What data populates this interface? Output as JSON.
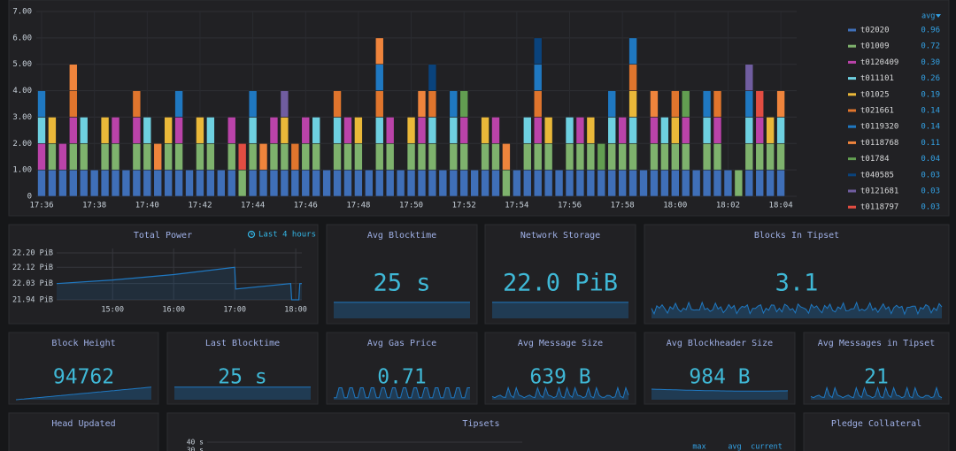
{
  "chart_data": [
    {
      "type": "stacked-bar",
      "categories": [
        "17:36",
        null,
        null,
        null,
        null,
        "17:38",
        null,
        null,
        null,
        null,
        "17:40",
        null,
        null,
        null,
        null,
        "17:42",
        null,
        null,
        null,
        null,
        "17:44",
        null,
        null,
        null,
        null,
        "17:46",
        null,
        null,
        null,
        null,
        "17:48",
        null,
        null,
        null,
        null,
        "17:50",
        null,
        null,
        null,
        null,
        "17:52",
        null,
        null,
        null,
        null,
        "17:54",
        null,
        null,
        null,
        null,
        "17:56",
        null,
        null,
        null,
        null,
        "17:58",
        null,
        null,
        null,
        null,
        "18:00",
        null,
        null,
        null,
        null,
        "18:02",
        null,
        null,
        null,
        null,
        "18:04"
      ],
      "ylim": [
        0,
        7
      ],
      "yticks": [
        0,
        {
          "value": 1,
          "label": "1.00"
        },
        {
          "value": 2,
          "label": "2.00"
        },
        {
          "value": 3,
          "label": "3.00"
        },
        {
          "value": 4,
          "label": "4.00"
        },
        {
          "value": 5,
          "label": "5.00"
        },
        {
          "value": 6,
          "label": "6.00"
        },
        {
          "value": 7,
          "label": "7.00"
        }
      ],
      "grid": true,
      "legend_header": "avg",
      "series": [
        {
          "name": "t02020",
          "color": "#3f6fb8",
          "avg": "0.96",
          "values": [
            1,
            1,
            1,
            1,
            1,
            1,
            1,
            1,
            1,
            1,
            1,
            1,
            1,
            1,
            1,
            1,
            1,
            1,
            1,
            0,
            1,
            1,
            1,
            1,
            1,
            1,
            1,
            1,
            1,
            1,
            1,
            1,
            1,
            1,
            1,
            1,
            1,
            1,
            1,
            1,
            1,
            1,
            1,
            1,
            0,
            1,
            1,
            1,
            1,
            1,
            1,
            1,
            1,
            1,
            1,
            1,
            1,
            1,
            1,
            1,
            1,
            1,
            1,
            1,
            1,
            1,
            0,
            1,
            1,
            1,
            1
          ]
        },
        {
          "name": "t01009",
          "color": "#7eb26d",
          "avg": "0.72",
          "values": [
            0,
            1,
            0,
            1,
            1,
            0,
            1,
            1,
            0,
            1,
            1,
            0,
            1,
            1,
            0,
            1,
            1,
            0,
            1,
            1,
            1,
            0,
            1,
            1,
            0,
            1,
            1,
            0,
            1,
            1,
            1,
            0,
            1,
            1,
            0,
            1,
            1,
            1,
            0,
            1,
            1,
            0,
            1,
            1,
            1,
            0,
            1,
            1,
            1,
            0,
            1,
            1,
            1,
            0,
            1,
            1,
            1,
            0,
            1,
            1,
            1,
            1,
            0,
            1,
            1,
            0,
            1,
            1,
            1,
            1,
            1
          ]
        },
        {
          "name": "t0120409",
          "color": "#ba43a9",
          "avg": "0.30",
          "values": [
            1,
            0,
            1,
            1,
            0,
            0,
            0,
            1,
            0,
            1,
            0,
            0,
            0,
            1,
            0,
            0,
            0,
            0,
            1,
            0,
            0,
            0,
            1,
            0,
            0,
            1,
            0,
            0,
            0,
            1,
            0,
            0,
            0,
            1,
            0,
            0,
            1,
            0,
            0,
            0,
            1,
            0,
            0,
            1,
            0,
            0,
            0,
            1,
            0,
            0,
            0,
            1,
            0,
            0,
            0,
            1,
            0,
            0,
            1,
            0,
            0,
            1,
            0,
            0,
            1,
            0,
            0,
            0,
            1,
            0,
            0
          ]
        },
        {
          "name": "t011101",
          "color": "#6ed0e0",
          "avg": "0.26",
          "values": [
            1,
            0,
            0,
            0,
            1,
            0,
            0,
            0,
            0,
            0,
            1,
            0,
            0,
            0,
            0,
            0,
            1,
            0,
            0,
            0,
            1,
            0,
            0,
            0,
            0,
            0,
            1,
            0,
            1,
            0,
            0,
            0,
            1,
            0,
            0,
            0,
            0,
            1,
            0,
            1,
            0,
            0,
            0,
            0,
            0,
            0,
            1,
            0,
            0,
            0,
            1,
            0,
            0,
            0,
            1,
            0,
            1,
            0,
            0,
            1,
            0,
            0,
            0,
            1,
            0,
            0,
            0,
            1,
            0,
            0,
            1
          ]
        },
        {
          "name": "t01025",
          "color": "#eab839",
          "avg": "0.19",
          "values": [
            0,
            1,
            0,
            0,
            0,
            0,
            1,
            0,
            0,
            0,
            0,
            0,
            1,
            0,
            0,
            1,
            0,
            0,
            0,
            0,
            0,
            0,
            0,
            1,
            0,
            0,
            0,
            0,
            0,
            0,
            1,
            0,
            0,
            0,
            0,
            1,
            0,
            0,
            0,
            0,
            0,
            0,
            1,
            0,
            0,
            0,
            0,
            0,
            1,
            0,
            0,
            0,
            1,
            0,
            0,
            0,
            1,
            0,
            0,
            0,
            1,
            0,
            0,
            0,
            0,
            0,
            0,
            0,
            0,
            1,
            0
          ]
        },
        {
          "name": "t021661",
          "color": "#e0752d",
          "avg": "0.14",
          "values": [
            0,
            0,
            0,
            1,
            0,
            0,
            0,
            0,
            0,
            1,
            0,
            0,
            0,
            0,
            0,
            0,
            0,
            0,
            0,
            0,
            0,
            0,
            0,
            0,
            1,
            0,
            0,
            0,
            1,
            0,
            0,
            0,
            1,
            0,
            0,
            0,
            0,
            1,
            0,
            0,
            0,
            0,
            0,
            0,
            0,
            0,
            0,
            1,
            0,
            0,
            0,
            0,
            0,
            0,
            0,
            0,
            1,
            0,
            0,
            0,
            1,
            0,
            0,
            0,
            1,
            0,
            0,
            0,
            0,
            0,
            0
          ]
        },
        {
          "name": "t0119320",
          "color": "#1f78c1",
          "avg": "0.14",
          "values": [
            1,
            0,
            0,
            0,
            0,
            0,
            0,
            0,
            0,
            0,
            0,
            0,
            0,
            1,
            0,
            0,
            0,
            0,
            0,
            0,
            1,
            0,
            0,
            0,
            0,
            0,
            0,
            0,
            0,
            0,
            0,
            0,
            1,
            0,
            0,
            0,
            0,
            0,
            0,
            1,
            0,
            0,
            0,
            0,
            0,
            0,
            0,
            1,
            0,
            0,
            0,
            0,
            0,
            0,
            1,
            0,
            1,
            0,
            0,
            0,
            0,
            0,
            0,
            1,
            0,
            0,
            0,
            1,
            0,
            0,
            0
          ]
        },
        {
          "name": "t0118768",
          "color": "#ef843c",
          "avg": "0.11",
          "values": [
            0,
            0,
            0,
            1,
            0,
            0,
            0,
            0,
            0,
            0,
            0,
            1,
            0,
            0,
            0,
            0,
            0,
            0,
            0,
            0,
            0,
            1,
            0,
            0,
            0,
            0,
            0,
            0,
            0,
            0,
            0,
            0,
            1,
            0,
            0,
            0,
            1,
            0,
            0,
            0,
            0,
            0,
            0,
            0,
            1,
            0,
            0,
            0,
            0,
            0,
            0,
            0,
            0,
            0,
            0,
            0,
            0,
            0,
            1,
            0,
            0,
            0,
            0,
            0,
            0,
            0,
            0,
            0,
            0,
            0,
            1
          ]
        },
        {
          "name": "t01784",
          "color": "#629e51",
          "avg": "0.04",
          "values": [
            0,
            0,
            0,
            0,
            0,
            0,
            0,
            0,
            0,
            0,
            0,
            0,
            0,
            0,
            0,
            0,
            0,
            0,
            0,
            0,
            0,
            0,
            0,
            0,
            0,
            0,
            0,
            0,
            0,
            0,
            0,
            0,
            0,
            0,
            0,
            0,
            0,
            0,
            0,
            0,
            1,
            0,
            0,
            0,
            0,
            0,
            0,
            0,
            0,
            0,
            0,
            0,
            0,
            1,
            0,
            0,
            0,
            0,
            0,
            0,
            0,
            1,
            0,
            0,
            0,
            0,
            0,
            0,
            0,
            0,
            0
          ]
        },
        {
          "name": "t040585",
          "color": "#0a437c",
          "avg": "0.03",
          "values": [
            0,
            0,
            0,
            0,
            0,
            0,
            0,
            0,
            0,
            0,
            0,
            0,
            0,
            0,
            0,
            0,
            0,
            0,
            0,
            0,
            0,
            0,
            0,
            0,
            0,
            0,
            0,
            0,
            0,
            0,
            0,
            0,
            0,
            0,
            0,
            0,
            0,
            1,
            0,
            0,
            0,
            0,
            0,
            0,
            0,
            0,
            0,
            1,
            0,
            0,
            0,
            0,
            0,
            0,
            0,
            0,
            0,
            0,
            0,
            0,
            0,
            0,
            0,
            0,
            0,
            0,
            0,
            0,
            0,
            0,
            0
          ]
        },
        {
          "name": "t0121681",
          "color": "#705da0",
          "avg": "0.03",
          "values": [
            0,
            0,
            0,
            0,
            0,
            0,
            0,
            0,
            0,
            0,
            0,
            0,
            0,
            0,
            0,
            0,
            0,
            0,
            0,
            0,
            0,
            0,
            0,
            1,
            0,
            0,
            0,
            0,
            0,
            0,
            0,
            0,
            0,
            0,
            0,
            0,
            0,
            0,
            0,
            0,
            0,
            0,
            0,
            0,
            0,
            0,
            0,
            0,
            0,
            0,
            0,
            0,
            0,
            0,
            0,
            0,
            0,
            0,
            0,
            0,
            0,
            0,
            0,
            0,
            0,
            0,
            0,
            1,
            0,
            0,
            0
          ]
        },
        {
          "name": "t0118797",
          "color": "#e24d42",
          "avg": "0.03",
          "values": [
            0,
            0,
            0,
            0,
            0,
            0,
            0,
            0,
            0,
            0,
            0,
            0,
            0,
            0,
            0,
            0,
            0,
            0,
            0,
            1,
            0,
            0,
            0,
            0,
            0,
            0,
            0,
            0,
            0,
            0,
            0,
            0,
            0,
            0,
            0,
            0,
            0,
            0,
            0,
            0,
            0,
            0,
            0,
            0,
            0,
            0,
            0,
            0,
            0,
            0,
            0,
            0,
            0,
            0,
            0,
            0,
            0,
            0,
            0,
            0,
            0,
            0,
            0,
            0,
            0,
            0,
            0,
            0,
            1,
            0,
            0
          ]
        }
      ]
    },
    {
      "type": "line",
      "title": "Total Power",
      "time_range": "Last 4 hours",
      "color": "#1f78c1",
      "x": [
        "14:05",
        "15:00",
        "16:00",
        "17:00",
        "17:01",
        "17:55",
        "17:56",
        "18:03",
        "18:04",
        "18:06"
      ],
      "values": [
        22.03,
        22.05,
        22.08,
        22.12,
        22.0,
        22.03,
        21.94,
        21.94,
        22.03,
        22.03
      ],
      "xlim": [
        "14:05",
        "18:06"
      ],
      "xticks": [
        "15:00",
        "16:00",
        "17:00",
        "18:00"
      ],
      "ylim": [
        21.94,
        22.2
      ],
      "yticks": [
        {
          "value": 21.94,
          "label": "21.94 PiB"
        },
        {
          "value": 22.03,
          "label": "22.03 PiB"
        },
        {
          "value": 22.12,
          "label": "22.12 PiB"
        },
        {
          "value": 22.2,
          "label": "22.20 PiB"
        }
      ],
      "grid": true
    }
  ],
  "panels": [
    {
      "title": "Avg Blocktime",
      "value": "25 s"
    },
    {
      "title": "Network Storage",
      "value": "22.0 PiB"
    },
    {
      "title": "Blocks In Tipset",
      "value": "3.1"
    },
    {
      "title": "Block Height",
      "value": "94762"
    },
    {
      "title": "Last Blocktime",
      "value": "25 s"
    },
    {
      "title": "Avg Gas Price",
      "value": "0.71"
    },
    {
      "title": "Avg Message Size",
      "value": "639 B"
    },
    {
      "title": "Avg Blockheader Size",
      "value": "984 B"
    },
    {
      "title": "Avg Messages in Tipset",
      "value": "21"
    },
    {
      "title": "Head Updated"
    },
    {
      "title": "Tipsets",
      "axis_labels": [
        "40 s",
        "30 s"
      ],
      "legend_headers": [
        "max",
        "avg",
        "current"
      ]
    },
    {
      "title": "Pledge Collateral"
    }
  ]
}
